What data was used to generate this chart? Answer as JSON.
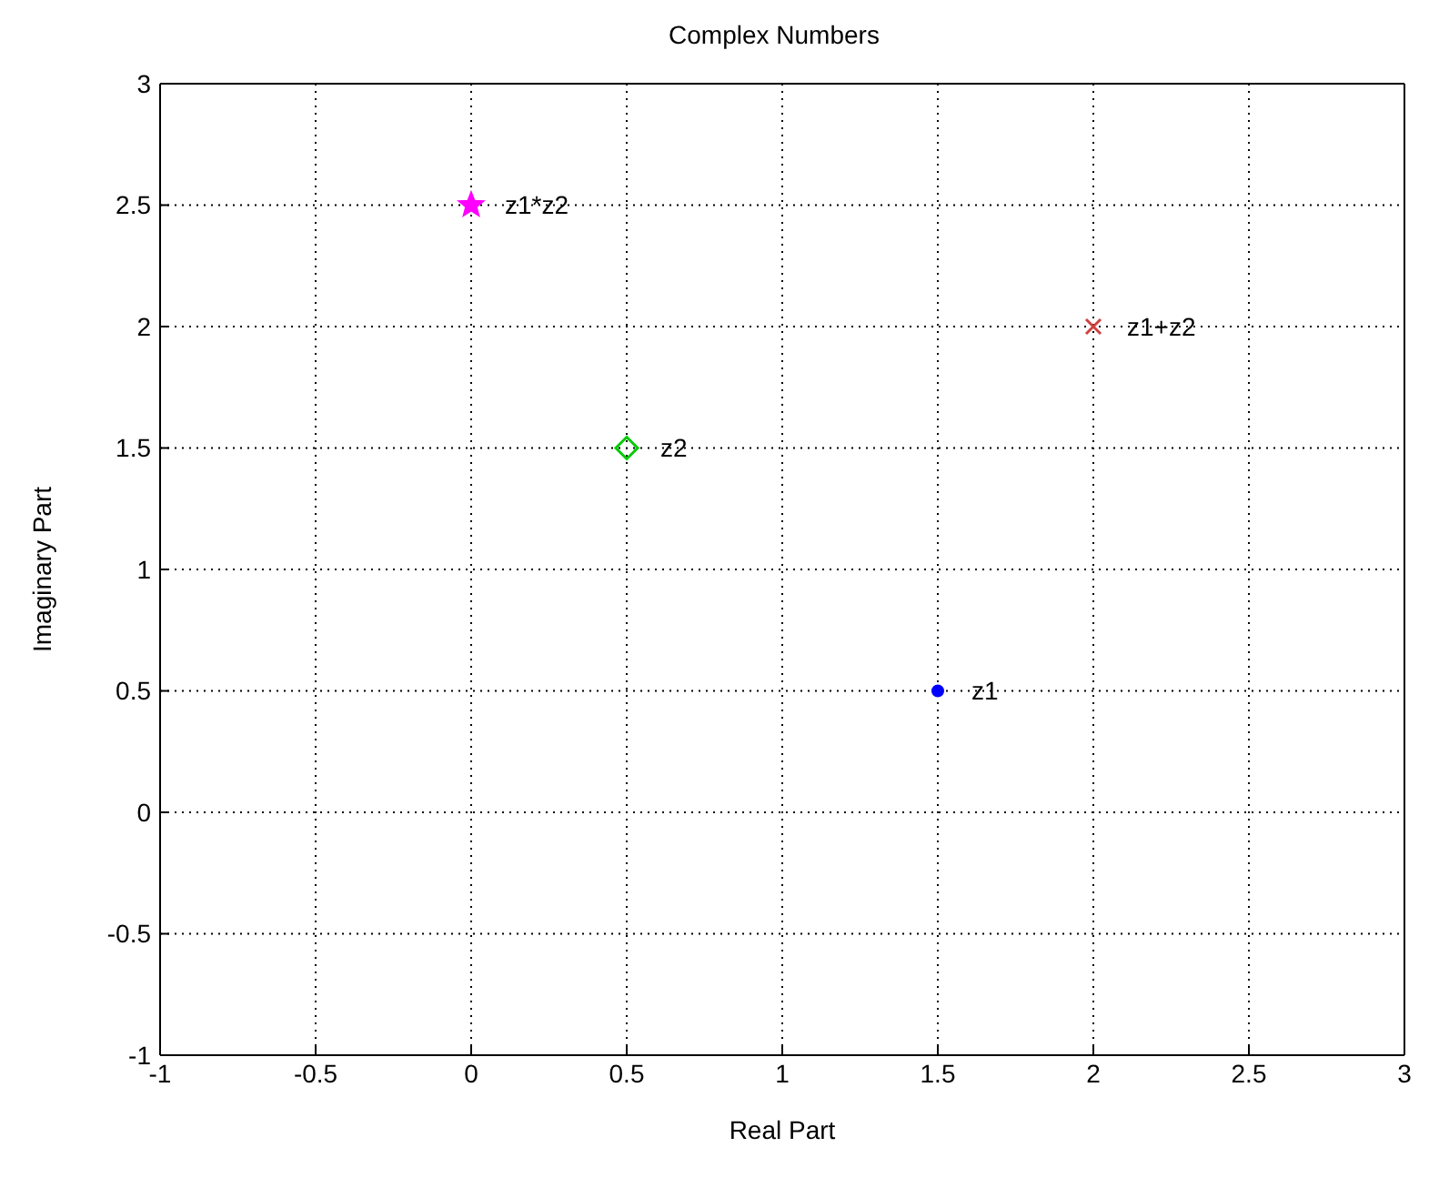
{
  "chart_data": {
    "type": "scatter",
    "title": "Complex Numbers",
    "xlabel": "Real Part",
    "ylabel": "Imaginary Part",
    "xlim": [
      -1,
      3
    ],
    "ylim": [
      -1,
      3
    ],
    "xticks": [
      -1,
      -0.5,
      0,
      0.5,
      1,
      1.5,
      2,
      2.5,
      3
    ],
    "yticks": [
      -1,
      -0.5,
      0,
      0.5,
      1,
      1.5,
      2,
      2.5,
      3
    ],
    "grid": true,
    "legend": false,
    "series": [
      {
        "name": "z1",
        "color": "#0000ff",
        "marker": "circle",
        "x": [
          1.5
        ],
        "values": [
          0.5
        ]
      },
      {
        "name": "z2",
        "color": "#00cc00",
        "marker": "diamond",
        "x": [
          0.5
        ],
        "values": [
          1.5
        ]
      },
      {
        "name": "z1+z2",
        "color": "#d04040",
        "marker": "cross",
        "x": [
          2
        ],
        "values": [
          2
        ]
      },
      {
        "name": "z1*z2",
        "color": "#ff00ff",
        "marker": "star",
        "x": [
          0
        ],
        "values": [
          2.5
        ]
      }
    ]
  }
}
